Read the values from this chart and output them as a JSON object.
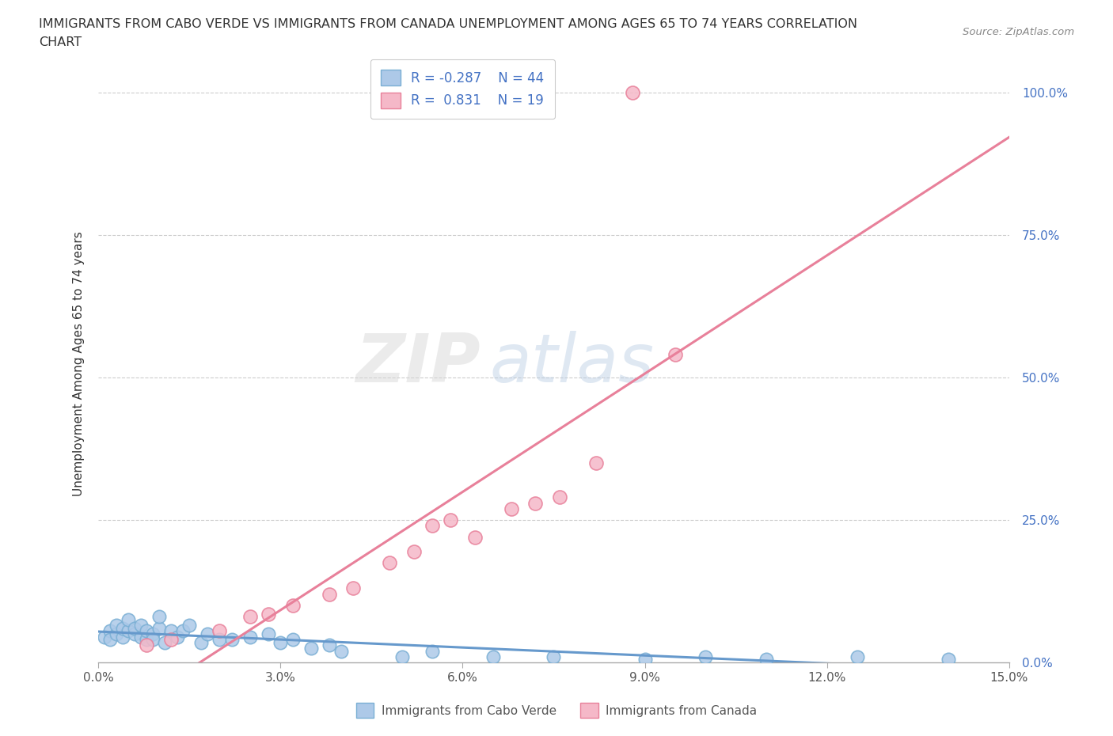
{
  "title_line1": "IMMIGRANTS FROM CABO VERDE VS IMMIGRANTS FROM CANADA UNEMPLOYMENT AMONG AGES 65 TO 74 YEARS CORRELATION",
  "title_line2": "CHART",
  "source_text": "Source: ZipAtlas.com",
  "ylabel": "Unemployment Among Ages 65 to 74 years",
  "xlim": [
    0.0,
    0.15
  ],
  "ylim": [
    0.0,
    1.05
  ],
  "xticks": [
    0.0,
    0.03,
    0.06,
    0.09,
    0.12,
    0.15
  ],
  "xticklabels": [
    "0.0%",
    "3.0%",
    "6.0%",
    "9.0%",
    "12.0%",
    "15.0%"
  ],
  "yticks": [
    0.0,
    0.25,
    0.5,
    0.75,
    1.0
  ],
  "yticklabels": [
    "0.0%",
    "25.0%",
    "50.0%",
    "75.0%",
    "100.0%"
  ],
  "cabo_verde_color": "#adc9e8",
  "canada_color": "#f5b8c8",
  "cabo_verde_edge": "#7aafd4",
  "canada_edge": "#e8809a",
  "trend_cabo_color": "#6699cc",
  "trend_canada_color": "#e8809a",
  "cabo_R": -0.287,
  "cabo_N": 44,
  "canada_R": 0.831,
  "canada_N": 19,
  "watermark_zip": "ZIP",
  "watermark_atlas": "atlas",
  "legend_label_cabo": "Immigrants from Cabo Verde",
  "legend_label_canada": "Immigrants from Canada",
  "cabo_verde_x": [
    0.001,
    0.002,
    0.002,
    0.003,
    0.003,
    0.004,
    0.004,
    0.005,
    0.005,
    0.006,
    0.006,
    0.007,
    0.007,
    0.008,
    0.008,
    0.009,
    0.009,
    0.01,
    0.01,
    0.011,
    0.012,
    0.013,
    0.014,
    0.015,
    0.017,
    0.018,
    0.02,
    0.022,
    0.025,
    0.028,
    0.03,
    0.032,
    0.035,
    0.038,
    0.04,
    0.05,
    0.055,
    0.065,
    0.075,
    0.09,
    0.1,
    0.11,
    0.125,
    0.14
  ],
  "cabo_verde_y": [
    0.045,
    0.055,
    0.04,
    0.05,
    0.065,
    0.045,
    0.06,
    0.055,
    0.075,
    0.05,
    0.06,
    0.045,
    0.065,
    0.04,
    0.055,
    0.05,
    0.04,
    0.06,
    0.08,
    0.035,
    0.055,
    0.045,
    0.055,
    0.065,
    0.035,
    0.05,
    0.04,
    0.04,
    0.045,
    0.05,
    0.035,
    0.04,
    0.025,
    0.03,
    0.02,
    0.01,
    0.02,
    0.01,
    0.01,
    0.005,
    0.01,
    0.005,
    0.01,
    0.005
  ],
  "canada_x": [
    0.008,
    0.012,
    0.02,
    0.025,
    0.028,
    0.032,
    0.038,
    0.042,
    0.048,
    0.052,
    0.055,
    0.058,
    0.062,
    0.068,
    0.072,
    0.076,
    0.082,
    0.088,
    0.095
  ],
  "canada_y": [
    0.03,
    0.04,
    0.055,
    0.08,
    0.085,
    0.1,
    0.12,
    0.13,
    0.175,
    0.195,
    0.24,
    0.25,
    0.22,
    0.27,
    0.28,
    0.29,
    0.35,
    1.0,
    0.54
  ]
}
